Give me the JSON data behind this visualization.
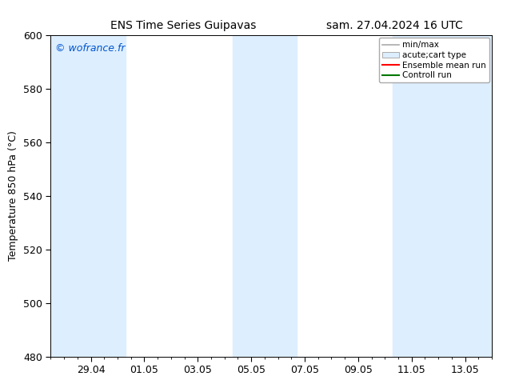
{
  "title_left": "ENS Time Series Guipavas",
  "title_right": "sam. 27.04.2024 16 UTC",
  "ylabel": "Temperature 850 hPa (°C)",
  "watermark": "© wofrance.fr",
  "watermark_color": "#0055cc",
  "ylim": [
    480,
    600
  ],
  "yticks": [
    480,
    500,
    520,
    540,
    560,
    580,
    600
  ],
  "xlim_days": [
    0,
    16.5
  ],
  "xtick_labels": [
    "29.04",
    "01.05",
    "03.05",
    "05.05",
    "07.05",
    "09.05",
    "11.05",
    "13.05"
  ],
  "xtick_positions": [
    1.5,
    3.5,
    5.5,
    7.5,
    9.5,
    11.5,
    13.5,
    15.5
  ],
  "shaded_bands": [
    {
      "x_start": 0.0,
      "x_end": 2.8,
      "color": "#ddeeff"
    },
    {
      "x_start": 6.8,
      "x_end": 9.2,
      "color": "#ddeeff"
    },
    {
      "x_start": 12.8,
      "x_end": 16.5,
      "color": "#ddeeff"
    }
  ],
  "legend_entries": [
    {
      "label": "min/max",
      "type": "errorbar",
      "color": "#aaaaaa"
    },
    {
      "label": "acute;cart type",
      "type": "box",
      "facecolor": "#ddeeff",
      "edgecolor": "#aaaaaa"
    },
    {
      "label": "Ensemble mean run",
      "type": "line",
      "color": "#ff0000"
    },
    {
      "label": "Controll run",
      "type": "line",
      "color": "#007700"
    }
  ],
  "bg_color": "#ffffff",
  "plot_bg_color": "#ffffff",
  "font_size": 9,
  "title_font_size": 10,
  "legend_font_size": 7.5,
  "watermark_font_size": 9,
  "fig_width": 6.34,
  "fig_height": 4.9,
  "dpi": 100
}
